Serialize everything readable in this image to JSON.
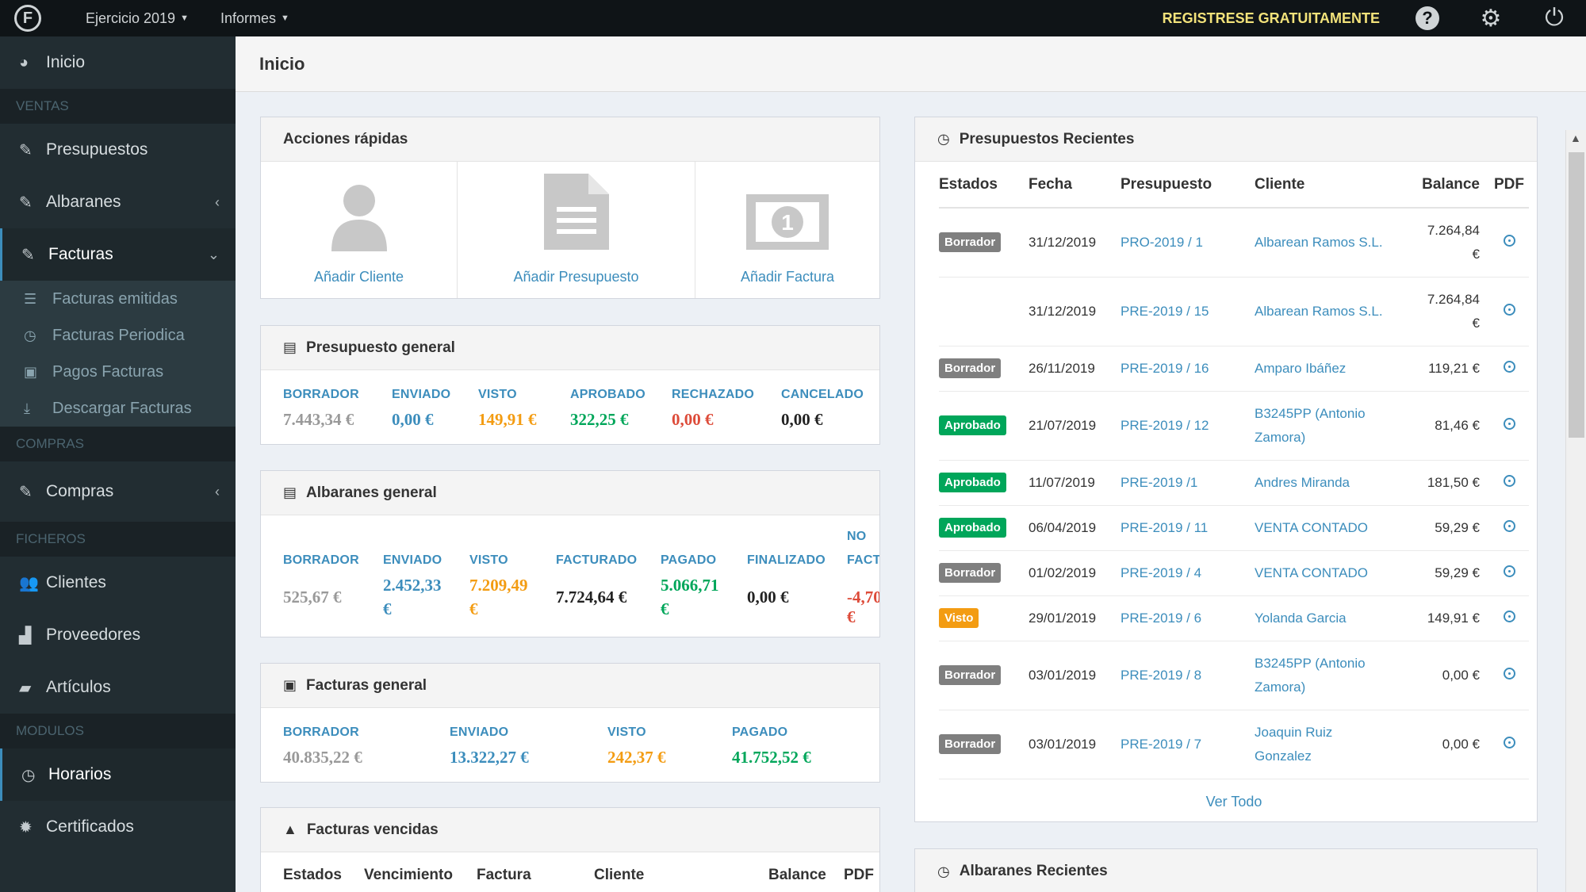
{
  "topbar": {
    "logo_letter": "F",
    "menu_year": "Ejercicio 2019",
    "menu_reports": "Informes",
    "register": "REGISTRESE GRATUITAMENTE"
  },
  "sidebar": {
    "inicio": "Inicio",
    "header_ventas": "VENTAS",
    "presupuestos": "Presupuestos",
    "albaranes": "Albaranes",
    "facturas": "Facturas",
    "facturas_sub": [
      "Facturas emitidas",
      "Facturas Periodica",
      "Pagos Facturas",
      "Descargar Facturas"
    ],
    "header_compras": "COMPRAS",
    "compras": "Compras",
    "header_ficheros": "FICHEROS",
    "clientes": "Clientes",
    "proveedores": "Proveedores",
    "articulos": "Artículos",
    "header_modulos": "MODULOS",
    "horarios": "Horarios",
    "certificados": "Certificados"
  },
  "page_title": "Inicio",
  "quick_actions": {
    "title": "Acciones rápidas",
    "add_client": "Añadir Cliente",
    "add_budget": "Añadir Presupuesto",
    "add_invoice": "Añadir Factura"
  },
  "budget_general": {
    "title": "Presupuesto general",
    "labels": [
      "BORRADOR",
      "ENVIADO",
      "VISTO",
      "APROBADO",
      "RECHAZADO",
      "CANCELADO"
    ],
    "values": [
      "7.443,34 €",
      "0,00 €",
      "149,91 €",
      "322,25 €",
      "0,00 €",
      "0,00 €"
    ]
  },
  "delivery_general": {
    "title": "Albaranes general",
    "labels": [
      "BORRADOR",
      "ENVIADO",
      "VISTO",
      "FACTURADO",
      "PAGADO",
      "FINALIZADO",
      "NO",
      "FACTURAD"
    ],
    "values": [
      "525,67 €",
      "2.452,33",
      "€",
      "7.209,49",
      "€",
      "7.724,64 €",
      "5.066,71",
      "€",
      "0,00 €",
      "-4,70 €"
    ]
  },
  "invoices_general": {
    "title": "Facturas general",
    "labels": [
      "BORRADOR",
      "ENVIADO",
      "VISTO",
      "PAGADO"
    ],
    "values": [
      "40.835,22 €",
      "13.322,27 €",
      "242,37 €",
      "41.752,52 €"
    ]
  },
  "overdue": {
    "title": "Facturas vencidas",
    "headers": [
      "Estados",
      "Vencimiento",
      "Factura",
      "Cliente",
      "Balance",
      "PDF"
    ]
  },
  "recent_budgets": {
    "title": "Presupuestos Recientes",
    "headers": [
      "Estados",
      "Fecha",
      "Presupuesto",
      "Cliente",
      "Balance",
      "PDF"
    ],
    "rows": [
      {
        "status": "Borrador",
        "date": "31/12/2019",
        "ref": "PRO-2019 / 1",
        "client1": "Albarean Ramos S.L.",
        "client2": "",
        "bal1": "7.264,84",
        "bal2": "€"
      },
      {
        "status": "",
        "date": "31/12/2019",
        "ref": "PRE-2019 / 15",
        "client1": "Albarean Ramos S.L.",
        "client2": "",
        "bal1": "7.264,84",
        "bal2": "€"
      },
      {
        "status": "Borrador",
        "date": "26/11/2019",
        "ref": "PRE-2019 / 16",
        "client1": "Amparo Ibáñez",
        "client2": "",
        "bal1": "119,21 €",
        "bal2": ""
      },
      {
        "status": "Aprobado",
        "date": "21/07/2019",
        "ref": "PRE-2019 / 12",
        "client1": "B3245PP (Antonio",
        "client2": "Zamora)",
        "bal1": "81,46 €",
        "bal2": ""
      },
      {
        "status": "Aprobado",
        "date": "11/07/2019",
        "ref": "PRE-2019 /1",
        "client1": "Andres Miranda",
        "client2": "",
        "bal1": "181,50 €",
        "bal2": ""
      },
      {
        "status": "Aprobado",
        "date": "06/04/2019",
        "ref": "PRE-2019 / 11",
        "client1": "VENTA CONTADO",
        "client2": "",
        "bal1": "59,29 €",
        "bal2": ""
      },
      {
        "status": "Borrador",
        "date": "01/02/2019",
        "ref": "PRE-2019 / 4",
        "client1": "VENTA CONTADO",
        "client2": "",
        "bal1": "59,29 €",
        "bal2": ""
      },
      {
        "status": "Visto",
        "date": "29/01/2019",
        "ref": "PRE-2019 / 6",
        "client1": "Yolanda Garcia",
        "client2": "",
        "bal1": "149,91 €",
        "bal2": ""
      },
      {
        "status": "Borrador",
        "date": "03/01/2019",
        "ref": "PRE-2019 / 8",
        "client1": "B3245PP (Antonio",
        "client2": "Zamora)",
        "bal1": "0,00 €",
        "bal2": ""
      },
      {
        "status": "Borrador",
        "date": "03/01/2019",
        "ref": "PRE-2019 / 7",
        "client1": "Joaquin Ruiz",
        "client2": "Gonzalez",
        "bal1": "0,00 €",
        "bal2": ""
      }
    ],
    "see_all": "Ver Todo"
  },
  "recent_delivery": {
    "title": "Albaranes Recientes"
  },
  "colors": {
    "badge_borrador": "#7f7f7f",
    "badge_aprobado": "#00a65a",
    "badge_visto": "#f39c12",
    "accent": "#3c8dbc"
  }
}
